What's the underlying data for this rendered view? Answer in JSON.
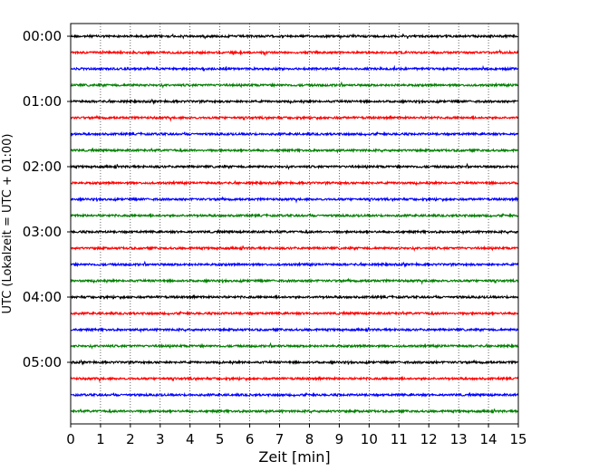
{
  "chart_data": {
    "type": "line",
    "title": "",
    "xlabel": "Zeit  [min]",
    "ylabel": "UTC (Lokalzeit = UTC + 01:00)",
    "xlim": [
      0,
      15
    ],
    "x_ticks": [
      "0",
      "1",
      "2",
      "3",
      "4",
      "5",
      "6",
      "7",
      "8",
      "9",
      "10",
      "11",
      "12",
      "13",
      "14",
      "15"
    ],
    "y_ticks": [
      "00:00",
      "01:00",
      "02:00",
      "03:00",
      "04:00",
      "05:00"
    ],
    "grid": "vertical dotted at each minute",
    "trace_interval_minutes": 15,
    "trace_start_times": [
      "00:00",
      "00:15",
      "00:30",
      "00:45",
      "01:00",
      "01:15",
      "01:30",
      "01:45",
      "02:00",
      "02:15",
      "02:30",
      "02:45",
      "03:00",
      "03:15",
      "03:30",
      "03:45",
      "04:00",
      "04:15",
      "04:30",
      "04:45",
      "05:00",
      "05:15",
      "05:30",
      "05:45"
    ],
    "trace_colors": [
      "#000000",
      "#ff0000",
      "#0000ff",
      "#007f00"
    ]
  }
}
